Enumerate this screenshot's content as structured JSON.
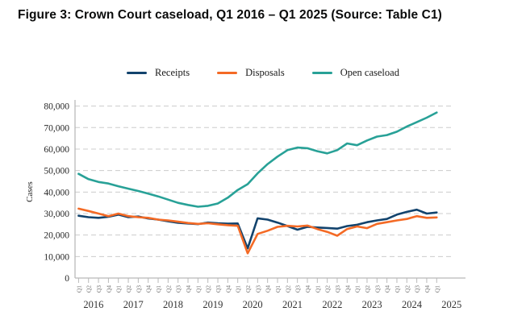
{
  "figure_title": "Figure 3: Crown Court caseload, Q1 2016 – Q1 2025 (Source: Table C1)",
  "chart_data": {
    "type": "line",
    "title": "Figure 3: Crown Court caseload, Q1 2016 – Q1 2025 (Source: Table C1)",
    "xlabel": "",
    "ylabel": "Cases",
    "ylim": [
      0,
      80000
    ],
    "ytick_step": 10000,
    "grid": "horizontal-dashed",
    "legend_position": "top-center",
    "x": [
      "Q1 2016",
      "Q2 2016",
      "Q3 2016",
      "Q4 2016",
      "Q1 2017",
      "Q2 2017",
      "Q3 2017",
      "Q4 2017",
      "Q1 2018",
      "Q2 2018",
      "Q3 2018",
      "Q4 2018",
      "Q1 2019",
      "Q2 2019",
      "Q3 2019",
      "Q4 2019",
      "Q1 2020",
      "Q2 2020",
      "Q3 2020",
      "Q4 2020",
      "Q1 2021",
      "Q2 2021",
      "Q3 2021",
      "Q4 2021",
      "Q1 2022",
      "Q2 2022",
      "Q3 2022",
      "Q4 2022",
      "Q1 2023",
      "Q2 2023",
      "Q3 2023",
      "Q4 2023",
      "Q1 2024",
      "Q2 2024",
      "Q3 2024",
      "Q4 2024",
      "Q1 2025"
    ],
    "series": [
      {
        "name": "Receipts",
        "color": "#12436D",
        "values": [
          29000,
          28300,
          28000,
          28500,
          29500,
          28300,
          28600,
          27700,
          27200,
          26400,
          25700,
          25400,
          25100,
          25800,
          25500,
          25300,
          25400,
          13800,
          27800,
          27200,
          25800,
          24200,
          22500,
          23800,
          23500,
          23300,
          23000,
          24200,
          24800,
          26000,
          26800,
          27500,
          29500,
          30800,
          31800,
          30000,
          30500
        ]
      },
      {
        "name": "Disposals",
        "color": "#F46A25",
        "values": [
          32300,
          31200,
          30000,
          28800,
          30000,
          28800,
          28300,
          28000,
          27200,
          26800,
          26200,
          25600,
          25200,
          25500,
          25000,
          24600,
          24300,
          11500,
          20500,
          22000,
          23800,
          24300,
          24000,
          24400,
          22800,
          21500,
          19700,
          22800,
          24000,
          23200,
          25200,
          26000,
          26800,
          27500,
          28800,
          28000,
          28200
        ]
      },
      {
        "name": "Open caseload",
        "color": "#28A197",
        "values": [
          48500,
          46000,
          44700,
          44000,
          42700,
          41600,
          40500,
          39300,
          38000,
          36500,
          35000,
          34000,
          33200,
          33600,
          34700,
          37400,
          41000,
          43700,
          48700,
          53000,
          56500,
          59500,
          60700,
          60400,
          59000,
          58000,
          59500,
          62600,
          61800,
          64000,
          65800,
          66500,
          68100,
          70500,
          72500,
          74600,
          77000
        ]
      }
    ]
  }
}
